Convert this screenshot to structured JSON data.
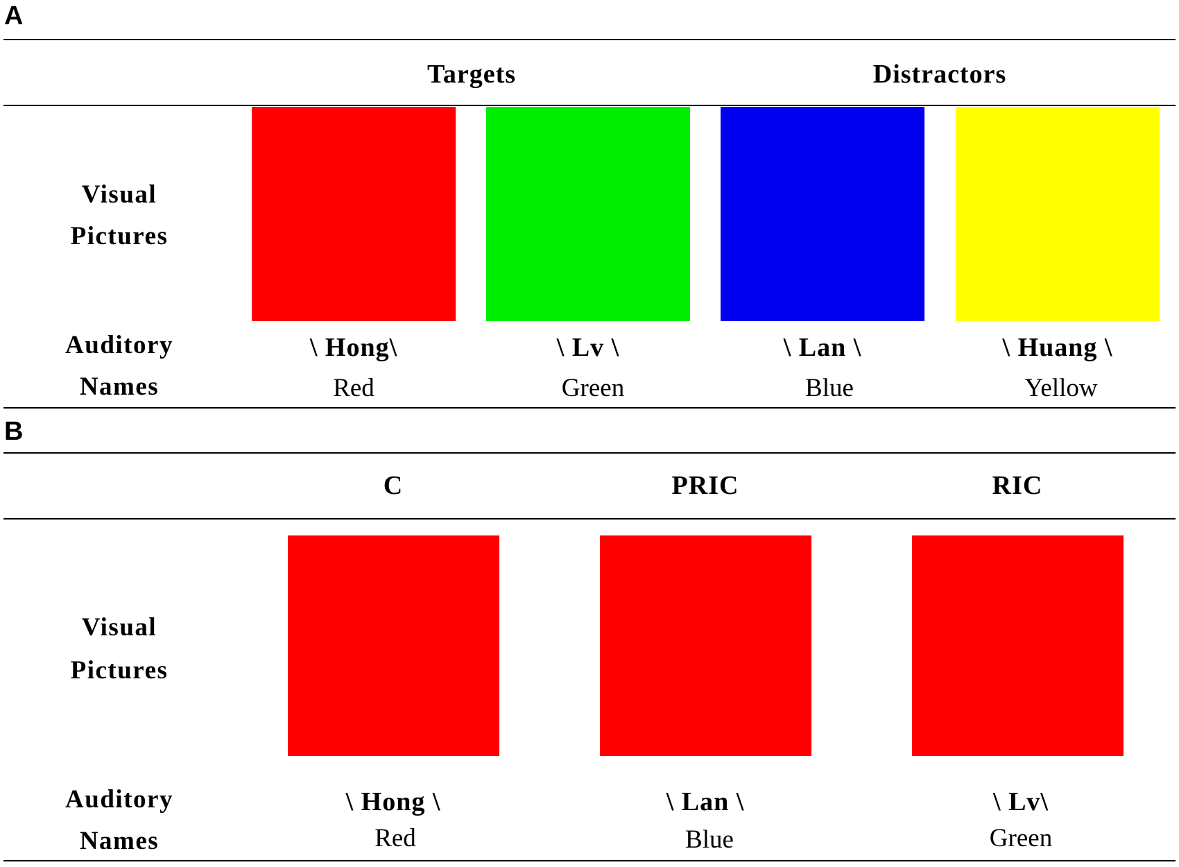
{
  "panel_a": {
    "letter": "A",
    "headers": [
      "Targets",
      "Distractors"
    ],
    "row_labels": {
      "visual": [
        "Visual",
        "Pictures"
      ],
      "auditory": [
        "Auditory",
        "Names"
      ]
    },
    "items": [
      {
        "auditory": "\\ Hong\\",
        "english": "Red",
        "color": "#ff0000"
      },
      {
        "auditory": "\\ Lv \\",
        "english": "Green",
        "color": "#00ee00"
      },
      {
        "auditory": "\\ Lan \\",
        "english": "Blue",
        "color": "#0000ee"
      },
      {
        "auditory": "\\ Huang \\",
        "english": "Yellow",
        "color": "#ffff00"
      }
    ]
  },
  "panel_b": {
    "letter": "B",
    "headers": [
      "C",
      "PRIC",
      "RIC"
    ],
    "row_labels": {
      "visual": [
        "Visual",
        "Pictures"
      ],
      "auditory": [
        "Auditory",
        "Names"
      ]
    },
    "items": [
      {
        "auditory": "\\ Hong \\",
        "english": "Red",
        "color": "#ff0000"
      },
      {
        "auditory": "\\ Lan \\",
        "english": "Blue",
        "color": "#ff0000"
      },
      {
        "auditory": "\\ Lv\\",
        "english": "Green",
        "color": "#ff0000"
      }
    ]
  }
}
